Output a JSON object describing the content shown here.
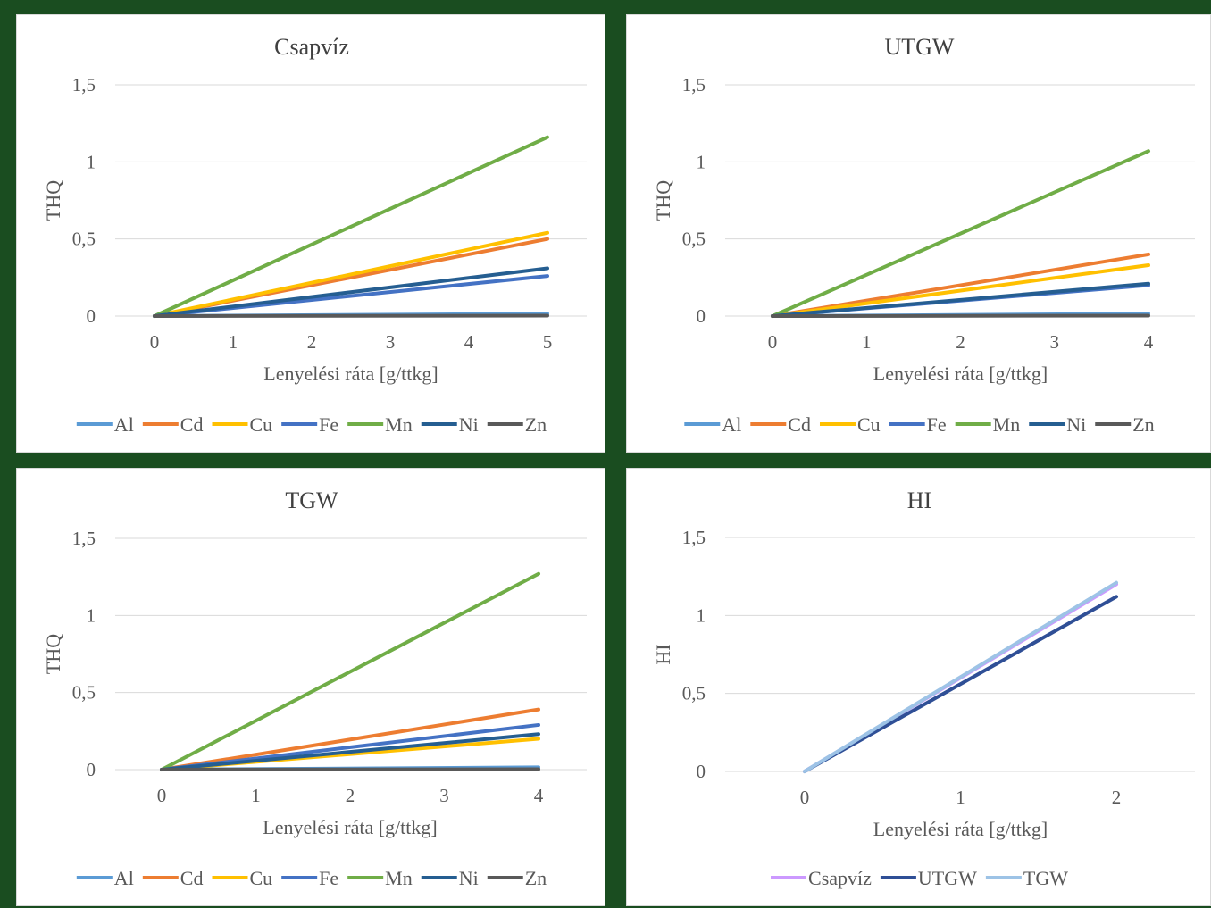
{
  "chart_data": [
    {
      "type": "line",
      "title": "Csapvíz",
      "xlabel": "Lenyelési ráta [g/ttkg]",
      "ylabel": "THQ",
      "x_ticks": [
        "0",
        "1",
        "2",
        "3",
        "4",
        "5"
      ],
      "y_ticks": [
        "0",
        "0,5",
        "1",
        "1,5"
      ],
      "xlim": [
        0,
        5
      ],
      "ylim": [
        0,
        1.5
      ],
      "grid": true,
      "legend_position": "bottom",
      "x": [
        0,
        5
      ],
      "series": [
        {
          "name": "Al",
          "color": "#5b9bd5",
          "values": [
            0,
            0.015
          ]
        },
        {
          "name": "Cd",
          "color": "#ed7d31",
          "values": [
            0,
            0.5
          ]
        },
        {
          "name": "Cu",
          "color": "#ffc000",
          "values": [
            0,
            0.54
          ]
        },
        {
          "name": "Fe",
          "color": "#4472c4",
          "values": [
            0,
            0.26
          ]
        },
        {
          "name": "Mn",
          "color": "#70ad47",
          "values": [
            0,
            1.16
          ]
        },
        {
          "name": "Ni",
          "color": "#255e91",
          "values": [
            0,
            0.31
          ]
        },
        {
          "name": "Zn",
          "color": "#595959",
          "values": [
            0,
            0.003
          ]
        }
      ]
    },
    {
      "type": "line",
      "title": "UTGW",
      "xlabel": "Lenyelési ráta [g/ttkg]",
      "ylabel": "THQ",
      "x_ticks": [
        "0",
        "1",
        "2",
        "3",
        "4"
      ],
      "y_ticks": [
        "0",
        "0,5",
        "1",
        "1,5"
      ],
      "xlim": [
        0,
        4
      ],
      "ylim": [
        0,
        1.5
      ],
      "grid": true,
      "legend_position": "bottom",
      "x": [
        0,
        4
      ],
      "series": [
        {
          "name": "Al",
          "color": "#5b9bd5",
          "values": [
            0,
            0.015
          ]
        },
        {
          "name": "Cd",
          "color": "#ed7d31",
          "values": [
            0,
            0.4
          ]
        },
        {
          "name": "Cu",
          "color": "#ffc000",
          "values": [
            0,
            0.33
          ]
        },
        {
          "name": "Fe",
          "color": "#4472c4",
          "values": [
            0,
            0.2
          ]
        },
        {
          "name": "Mn",
          "color": "#70ad47",
          "values": [
            0,
            1.07
          ]
        },
        {
          "name": "Ni",
          "color": "#255e91",
          "values": [
            0,
            0.21
          ]
        },
        {
          "name": "Zn",
          "color": "#595959",
          "values": [
            0,
            0.003
          ]
        }
      ]
    },
    {
      "type": "line",
      "title": "TGW",
      "xlabel": "Lenyelési ráta [g/ttkg]",
      "ylabel": "THQ",
      "x_ticks": [
        "0",
        "1",
        "2",
        "3",
        "4"
      ],
      "y_ticks": [
        "0",
        "0,5",
        "1",
        "1,5"
      ],
      "xlim": [
        0,
        4
      ],
      "ylim": [
        0,
        1.5
      ],
      "grid": true,
      "legend_position": "bottom",
      "x": [
        0,
        4
      ],
      "series": [
        {
          "name": "Al",
          "color": "#5b9bd5",
          "values": [
            0,
            0.015
          ]
        },
        {
          "name": "Cd",
          "color": "#ed7d31",
          "values": [
            0,
            0.39
          ]
        },
        {
          "name": "Cu",
          "color": "#ffc000",
          "values": [
            0,
            0.2
          ]
        },
        {
          "name": "Fe",
          "color": "#4472c4",
          "values": [
            0,
            0.29
          ]
        },
        {
          "name": "Mn",
          "color": "#70ad47",
          "values": [
            0,
            1.27
          ]
        },
        {
          "name": "Ni",
          "color": "#255e91",
          "values": [
            0,
            0.23
          ]
        },
        {
          "name": "Zn",
          "color": "#595959",
          "values": [
            0,
            0.003
          ]
        }
      ]
    },
    {
      "type": "line",
      "title": "HI",
      "xlabel": "Lenyelési ráta [g/ttkg]",
      "ylabel": "HI",
      "x_ticks": [
        "0",
        "1",
        "2"
      ],
      "y_ticks": [
        "0",
        "0,5",
        "1",
        "1,5"
      ],
      "xlim": [
        0,
        2
      ],
      "ylim": [
        0,
        1.5
      ],
      "grid": true,
      "legend_position": "bottom",
      "x": [
        0,
        2
      ],
      "series": [
        {
          "name": "Csapvíz",
          "color": "#cc99ff",
          "values": [
            0,
            1.2
          ]
        },
        {
          "name": "UTGW",
          "color": "#2f4f96",
          "values": [
            0,
            1.12
          ]
        },
        {
          "name": "TGW",
          "color": "#9dc3e6",
          "values": [
            0,
            1.21
          ]
        }
      ]
    }
  ]
}
